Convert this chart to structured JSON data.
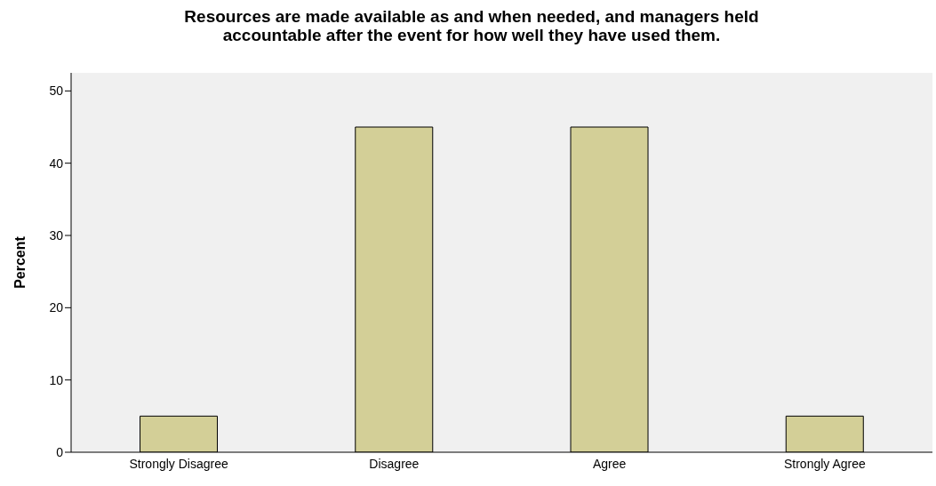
{
  "chart_data": {
    "type": "bar",
    "title": "Resources are made available as and when needed, and managers held accountable after the event for how well they have used them.",
    "ylabel": "Percent",
    "categories": [
      "Strongly Disagree",
      "Disagree",
      "Agree",
      "Strongly Agree"
    ],
    "values": [
      5,
      45,
      45,
      5
    ],
    "color": "#d3cf97",
    "ylim": [
      0,
      52.5
    ],
    "yticks": [
      0,
      10,
      20,
      30,
      40,
      50
    ]
  }
}
